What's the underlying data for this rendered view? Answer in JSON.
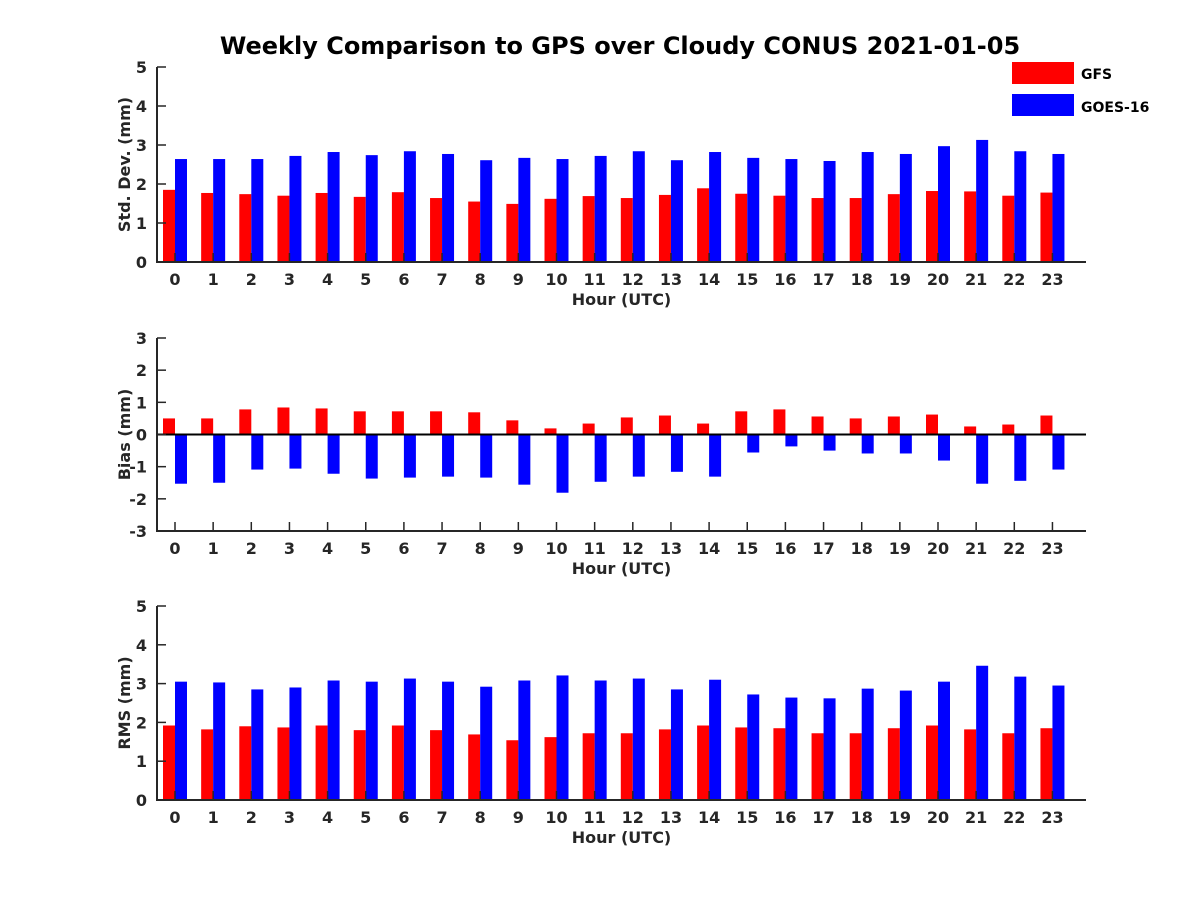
{
  "title": "Weekly Comparison to GPS over Cloudy CONUS 2021-01-05",
  "legend": {
    "placement": "top-right",
    "entries": [
      {
        "name": "GFS",
        "color": "#ff0000"
      },
      {
        "name": "GOES-16",
        "color": "#0000ff"
      }
    ]
  },
  "chart_data": [
    {
      "type": "bar",
      "xlabel": "Hour (UTC)",
      "ylabel": "Std. Dev. (mm)",
      "ylim": [
        0,
        5
      ],
      "yticks": [
        0,
        1,
        2,
        3,
        4,
        5
      ],
      "categories": [
        "0",
        "1",
        "2",
        "3",
        "4",
        "5",
        "6",
        "7",
        "8",
        "9",
        "10",
        "11",
        "12",
        "13",
        "14",
        "15",
        "16",
        "17",
        "18",
        "19",
        "20",
        "21",
        "22",
        "23"
      ],
      "series": [
        {
          "name": "GFS",
          "color": "#ff0000",
          "values": [
            1.85,
            1.77,
            1.74,
            1.7,
            1.77,
            1.67,
            1.79,
            1.64,
            1.55,
            1.49,
            1.62,
            1.69,
            1.64,
            1.72,
            1.89,
            1.75,
            1.7,
            1.64,
            1.64,
            1.74,
            1.82,
            1.81,
            1.7,
            1.78
          ]
        },
        {
          "name": "GOES-16",
          "color": "#0000ff",
          "values": [
            2.64,
            2.64,
            2.64,
            2.72,
            2.82,
            2.74,
            2.84,
            2.77,
            2.61,
            2.67,
            2.64,
            2.72,
            2.84,
            2.61,
            2.82,
            2.67,
            2.64,
            2.59,
            2.82,
            2.77,
            2.97,
            3.13,
            2.84,
            2.77
          ]
        }
      ]
    },
    {
      "type": "bar",
      "xlabel": "Hour (UTC)",
      "ylabel": "Bias (mm)",
      "ylim": [
        -3,
        3
      ],
      "yticks": [
        -3,
        -2,
        -1,
        0,
        1,
        2,
        3
      ],
      "categories": [
        "0",
        "1",
        "2",
        "3",
        "4",
        "5",
        "6",
        "7",
        "8",
        "9",
        "10",
        "11",
        "12",
        "13",
        "14",
        "15",
        "16",
        "17",
        "18",
        "19",
        "20",
        "21",
        "22",
        "23"
      ],
      "series": [
        {
          "name": "GFS",
          "color": "#ff0000",
          "values": [
            0.5,
            0.5,
            0.78,
            0.84,
            0.81,
            0.72,
            0.72,
            0.72,
            0.69,
            0.44,
            0.19,
            0.34,
            0.53,
            0.59,
            0.34,
            0.72,
            0.78,
            0.56,
            0.5,
            0.56,
            0.62,
            0.25,
            0.31,
            0.59
          ]
        },
        {
          "name": "GOES-16",
          "color": "#0000ff",
          "values": [
            -1.53,
            -1.5,
            -1.09,
            -1.06,
            -1.22,
            -1.37,
            -1.34,
            -1.31,
            -1.34,
            -1.56,
            -1.81,
            -1.47,
            -1.31,
            -1.16,
            -1.31,
            -0.56,
            -0.37,
            -0.5,
            -0.59,
            -0.59,
            -0.81,
            -1.53,
            -1.44,
            -1.09
          ]
        }
      ]
    },
    {
      "type": "bar",
      "xlabel": "Hour (UTC)",
      "ylabel": "RMS (mm)",
      "ylim": [
        0,
        5
      ],
      "yticks": [
        0,
        1,
        2,
        3,
        4,
        5
      ],
      "categories": [
        "0",
        "1",
        "2",
        "3",
        "4",
        "5",
        "6",
        "7",
        "8",
        "9",
        "10",
        "11",
        "12",
        "13",
        "14",
        "15",
        "16",
        "17",
        "18",
        "19",
        "20",
        "21",
        "22",
        "23"
      ],
      "series": [
        {
          "name": "GFS",
          "color": "#ff0000",
          "values": [
            1.92,
            1.82,
            1.9,
            1.87,
            1.92,
            1.8,
            1.92,
            1.8,
            1.69,
            1.54,
            1.62,
            1.72,
            1.72,
            1.82,
            1.92,
            1.87,
            1.85,
            1.72,
            1.72,
            1.85,
            1.92,
            1.82,
            1.72,
            1.85
          ]
        },
        {
          "name": "GOES-16",
          "color": "#0000ff",
          "values": [
            3.05,
            3.03,
            2.85,
            2.9,
            3.08,
            3.05,
            3.13,
            3.05,
            2.92,
            3.08,
            3.21,
            3.08,
            3.13,
            2.85,
            3.1,
            2.72,
            2.64,
            2.62,
            2.87,
            2.82,
            3.05,
            3.46,
            3.18,
            2.95
          ]
        }
      ]
    }
  ]
}
